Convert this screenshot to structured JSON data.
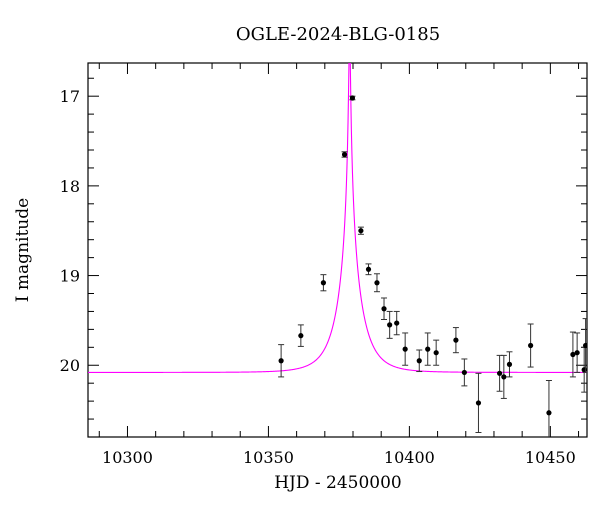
{
  "chart_data": {
    "type": "scatter",
    "title": "OGLE-2024-BLG-0185",
    "xlabel": "HJD - 2450000",
    "ylabel": "I magnitude",
    "xlim": [
      10286,
      10463
    ],
    "ylim": [
      20.8,
      16.63
    ],
    "y_inverted": true,
    "x_ticks": [
      10300,
      10350,
      10400,
      10450
    ],
    "y_ticks": [
      17,
      18,
      19,
      20
    ],
    "x_minor_step": 10,
    "y_minor_step": 0.2,
    "grid": false,
    "colors": {
      "model": "#ff00ff",
      "points": "#000000"
    },
    "model": {
      "name": "",
      "type": "microlensing",
      "t0": 10378.8,
      "tE": 8.0,
      "u0": 0.03,
      "baseline": 20.08,
      "blend_fraction": 1.0
    },
    "points": [
      {
        "x": 10354.5,
        "y": 19.95,
        "err": 0.18
      },
      {
        "x": 10361.5,
        "y": 19.67,
        "err": 0.12
      },
      {
        "x": 10369.5,
        "y": 19.08,
        "err": 0.09
      },
      {
        "x": 10377.0,
        "y": 17.65,
        "err": 0.03
      },
      {
        "x": 10379.8,
        "y": 17.02,
        "err": 0.02
      },
      {
        "x": 10382.8,
        "y": 18.5,
        "err": 0.04
      },
      {
        "x": 10385.5,
        "y": 18.93,
        "err": 0.06
      },
      {
        "x": 10388.5,
        "y": 19.08,
        "err": 0.1
      },
      {
        "x": 10391.0,
        "y": 19.37,
        "err": 0.12
      },
      {
        "x": 10393.0,
        "y": 19.55,
        "err": 0.15
      },
      {
        "x": 10395.5,
        "y": 19.53,
        "err": 0.13
      },
      {
        "x": 10398.5,
        "y": 19.82,
        "err": 0.18
      },
      {
        "x": 10403.5,
        "y": 19.95,
        "err": 0.12
      },
      {
        "x": 10406.5,
        "y": 19.82,
        "err": 0.18
      },
      {
        "x": 10409.5,
        "y": 19.86,
        "err": 0.14
      },
      {
        "x": 10416.5,
        "y": 19.72,
        "err": 0.14
      },
      {
        "x": 10419.5,
        "y": 20.08,
        "err": 0.15
      },
      {
        "x": 10424.5,
        "y": 20.42,
        "err": 0.33
      },
      {
        "x": 10432.0,
        "y": 20.09,
        "err": 0.2
      },
      {
        "x": 10433.5,
        "y": 20.13,
        "err": 0.24
      },
      {
        "x": 10435.5,
        "y": 19.99,
        "err": 0.14
      },
      {
        "x": 10443.0,
        "y": 19.78,
        "err": 0.24
      },
      {
        "x": 10449.5,
        "y": 20.53,
        "err": 0.36
      },
      {
        "x": 10458.0,
        "y": 19.88,
        "err": 0.25
      },
      {
        "x": 10459.5,
        "y": 19.86,
        "err": 0.22
      },
      {
        "x": 10462.0,
        "y": 20.05,
        "err": 0.25
      },
      {
        "x": 10462.5,
        "y": 19.78,
        "err": 0.3
      }
    ]
  }
}
